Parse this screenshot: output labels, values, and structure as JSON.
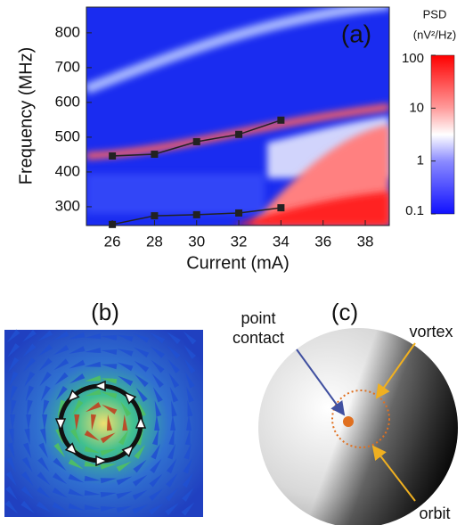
{
  "chart_data": {
    "type": "line",
    "annotation": "(a)",
    "x_label": "Current (mA)",
    "y_label": "Frequency (MHz)",
    "x": [
      26,
      28,
      30,
      32,
      34
    ],
    "series": [
      {
        "color": "#222222",
        "values": [
          446,
          451,
          487,
          508,
          549
        ]
      },
      {
        "color": "#222222",
        "values": [
          249,
          274,
          277,
          282,
          297
        ]
      }
    ],
    "xlim": [
      24.77,
      39.14
    ],
    "xticks": [
      26,
      28,
      30,
      32,
      34,
      36,
      38
    ],
    "ylim": [
      246,
      874
    ],
    "yticks": [
      300,
      400,
      500,
      600,
      700,
      800
    ],
    "colorbar": {
      "title": "PSD",
      "units": "(nV²/Hz)",
      "log": true,
      "lim": [
        0.1,
        100
      ],
      "ticks": [
        0.1,
        1,
        10,
        100
      ]
    }
  },
  "panel_b": {
    "label": "(b)"
  },
  "panel_c": {
    "label": "(c)",
    "point_contact": [
      "point",
      "contact"
    ],
    "vortex": "vortex",
    "orbit": "orbit"
  }
}
